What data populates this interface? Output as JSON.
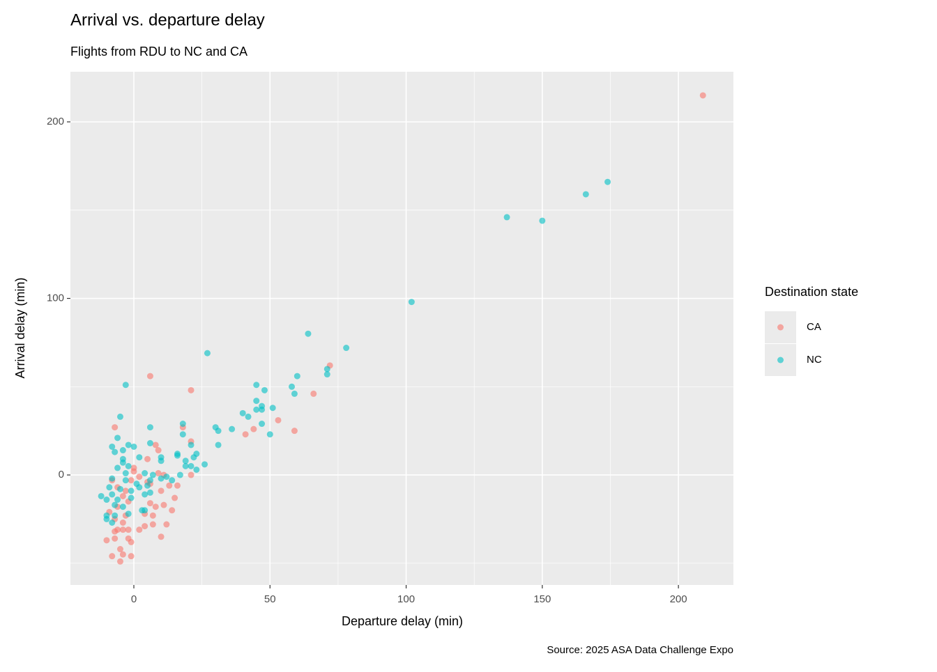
{
  "chart_data": {
    "type": "scatter",
    "title": "Arrival vs. departure delay",
    "subtitle": "Flights from RDU to NC and CA",
    "x_label": "Departure delay (min)",
    "y_label": "Arrival delay (min)",
    "caption": "Source: 2025 ASA Data Challenge Expo",
    "legend_title": "Destination state",
    "legend_position": "right",
    "grid": true,
    "xlim": [
      -23.3,
      220.2
    ],
    "ylim": [
      -62.3,
      228.4
    ],
    "xticks": [
      0,
      50,
      100,
      150,
      200
    ],
    "yticks": [
      0,
      100,
      200
    ],
    "x_minor_grid": [
      25,
      75,
      125,
      175
    ],
    "y_minor_grid": [
      -50,
      50,
      150
    ],
    "point_opacity": 0.6,
    "series": [
      {
        "name": "CA",
        "color": "#F8766D",
        "x": [
          209,
          72,
          6,
          21,
          66,
          53,
          44,
          41,
          59,
          21,
          18,
          -7,
          8,
          9,
          5,
          0,
          0,
          9,
          11,
          21,
          16,
          5,
          10,
          15,
          11,
          6,
          8,
          14,
          4,
          7,
          12,
          4,
          7,
          2,
          10,
          -2,
          -2,
          -1,
          -7,
          -10,
          -7,
          -5,
          -4,
          -1,
          -8,
          -5,
          -4,
          -3,
          -6,
          -4,
          -8,
          -6,
          -2,
          -7,
          -9,
          -1,
          -3,
          -4,
          2,
          6,
          13,
          -6
        ],
        "values": [
          215,
          62,
          56,
          48,
          46,
          31,
          26,
          23,
          25,
          19,
          27,
          27,
          17,
          14,
          9,
          4,
          2,
          1,
          0,
          0,
          -6,
          -4,
          -9,
          -13,
          -17,
          -16,
          -18,
          -20,
          -22,
          -23,
          -28,
          -29,
          -28,
          -31,
          -35,
          -31,
          -36,
          -38,
          -36,
          -37,
          -32,
          -42,
          -45,
          -46,
          -46,
          -49,
          -27,
          -23,
          -18,
          -12,
          -3,
          -7,
          -15,
          -25,
          -21,
          -3,
          -9,
          -31,
          -1,
          -5,
          -6,
          -31
        ]
      },
      {
        "name": "NC",
        "color": "#00BFC4",
        "x": [
          174,
          166,
          137,
          150,
          102,
          64,
          78,
          71,
          71,
          60,
          27,
          -3,
          45,
          58,
          48,
          59,
          45,
          47,
          51,
          47,
          45,
          40,
          42,
          -5,
          47,
          18,
          30,
          6,
          31,
          36,
          50,
          18,
          -6,
          31,
          21,
          6,
          -2,
          0,
          -8,
          -4,
          -7,
          16,
          23,
          22,
          10,
          2,
          16,
          19,
          10,
          26,
          21,
          19,
          23,
          -4,
          -2,
          -6,
          -8,
          17,
          12,
          10,
          14,
          6,
          7,
          4,
          5,
          2,
          6,
          4,
          -12,
          -10,
          3,
          4,
          -10,
          -10,
          -8,
          -8,
          -6,
          -4,
          -2,
          -1,
          1,
          -3,
          -5,
          -7,
          -1,
          -4,
          -3,
          -9,
          -7
        ],
        "values": [
          166,
          159,
          146,
          144,
          98,
          80,
          72,
          60,
          57,
          56,
          69,
          51,
          51,
          50,
          48,
          46,
          42,
          39,
          38,
          37,
          37,
          35,
          33,
          33,
          29,
          29,
          27,
          27,
          25,
          26,
          23,
          23,
          21,
          17,
          17,
          18,
          17,
          16,
          16,
          14,
          13,
          12,
          12,
          10,
          10,
          10,
          11,
          8,
          8,
          6,
          5,
          5,
          3,
          9,
          5,
          4,
          -2,
          0,
          -1,
          -2,
          -3,
          -3,
          0,
          1,
          -6,
          -7,
          -10,
          -11,
          -12,
          -14,
          -20,
          -20,
          -23,
          -25,
          -27,
          -11,
          -14,
          -18,
          -22,
          -13,
          -5,
          -3,
          -8,
          -17,
          -9,
          7,
          1,
          -7,
          -23
        ]
      }
    ]
  }
}
